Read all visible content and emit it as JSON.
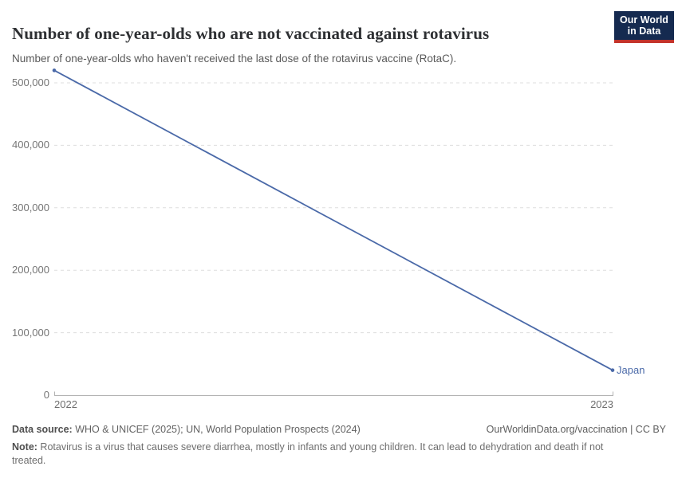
{
  "header": {
    "title": "Number of one-year-olds who are not vaccinated against rotavirus",
    "subtitle": "Number of one-year-olds who haven't received the last dose of the rotavirus vaccine (RotaC).",
    "logo": {
      "line1": "Our World",
      "line2": "in Data",
      "bg_color": "#152a50",
      "accent_color": "#c3332b"
    }
  },
  "chart_data": {
    "type": "line",
    "title": "Number of one-year-olds who are not vaccinated against rotavirus",
    "x": [
      2022,
      2023
    ],
    "xtick_labels": [
      "2022",
      "2023"
    ],
    "series": [
      {
        "name": "Japan",
        "values": [
          520000,
          40000
        ]
      }
    ],
    "end_label": "Japan",
    "yticks": [
      0,
      100000,
      200000,
      300000,
      400000,
      500000
    ],
    "ytick_labels": [
      "0",
      "100,000",
      "200,000",
      "300,000",
      "400,000",
      "500,000"
    ],
    "ylim": [
      0,
      520000
    ],
    "grid": "horizontal-dashed",
    "legend_position": "end-of-line",
    "line_color": "#4a69a8",
    "grid_color": "#dedede",
    "axis_color": "#b3b3b3"
  },
  "footer": {
    "data_source_label": "Data source:",
    "data_source": " WHO & UNICEF (2025); UN, World Population Prospects (2024)",
    "citation_link": "OurWorldinData.org/vaccination",
    "citation_divider": " | ",
    "citation_license": "CC BY",
    "note_label": "Note:",
    "note": " Rotavirus is a virus that causes severe diarrhea, mostly in infants and young children. It can lead to dehydration and death if not treated."
  }
}
